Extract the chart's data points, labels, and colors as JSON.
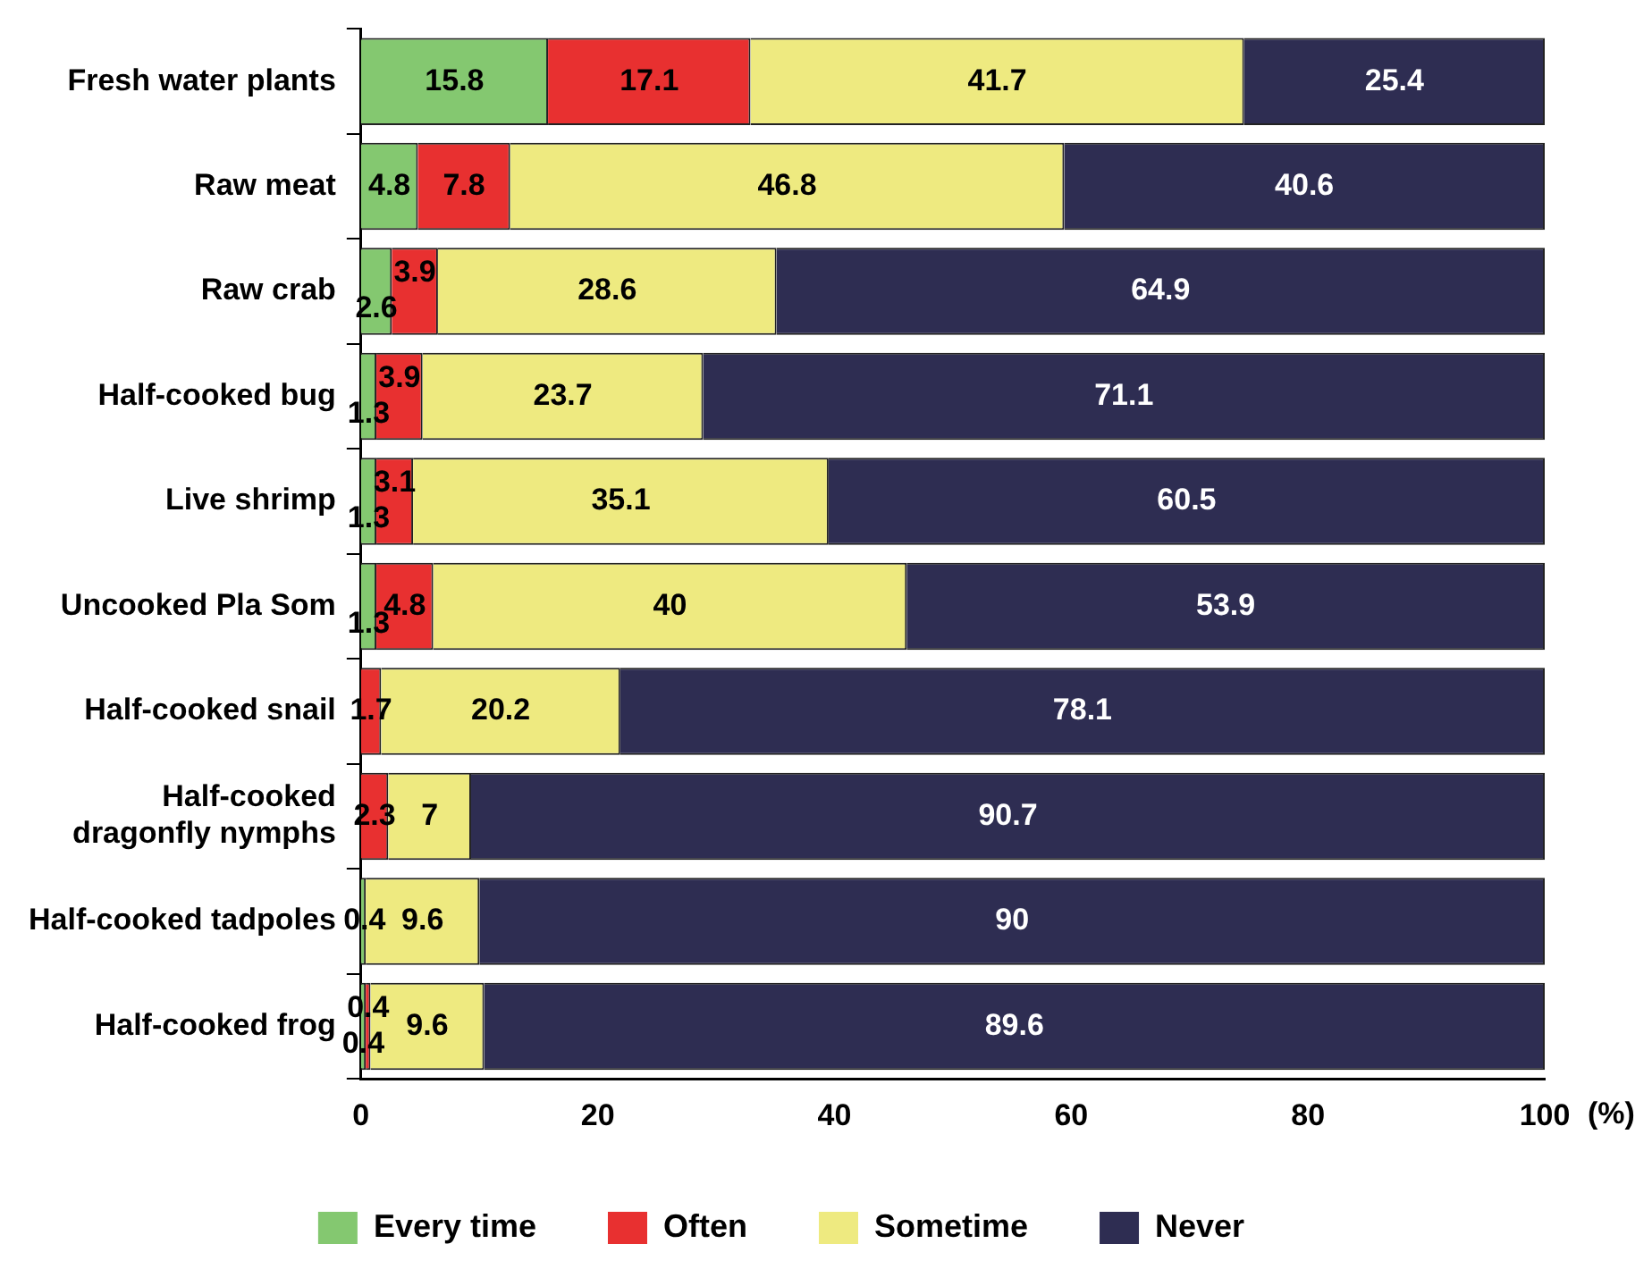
{
  "chart_data": {
    "type": "bar",
    "orientation": "horizontal",
    "stacked": true,
    "xlabel": "(%)",
    "categories": [
      "Fresh water plants",
      "Raw meat",
      "Raw crab",
      "Half-cooked bug",
      "Live shrimp",
      "Uncooked Pla Som",
      "Half-cooked snail",
      "Half-cooked dragonfly nymphs",
      "Half-cooked tadpoles",
      "Half-cooked frog"
    ],
    "series": [
      {
        "name": "Every time",
        "color": "#84c870",
        "values": [
          15.8,
          4.8,
          2.6,
          1.3,
          1.3,
          1.3,
          0,
          0,
          0.4,
          0.4
        ],
        "value_labels": [
          "15.8",
          "4.8",
          "2.6",
          "1.3",
          "1.3",
          "1.3",
          null,
          null,
          "0.4",
          "0.4"
        ]
      },
      {
        "name": "Often",
        "color": "#e83030",
        "values": [
          17.1,
          7.8,
          3.9,
          3.9,
          3.1,
          4.8,
          1.7,
          2.3,
          0,
          0.4
        ],
        "value_labels": [
          "17.1",
          "7.8",
          "3.9",
          "3.9",
          "3.1",
          "4.8",
          "1.7",
          "2.3",
          null,
          "0.4"
        ]
      },
      {
        "name": "Sometime",
        "color": "#eeea80",
        "values": [
          41.7,
          46.8,
          28.6,
          23.7,
          35.1,
          40,
          20.2,
          7,
          9.6,
          9.6
        ],
        "value_labels": [
          "41.7",
          "46.8",
          "28.6",
          "23.7",
          "35.1",
          "40",
          "20.2",
          "7",
          "9.6",
          "9.6"
        ]
      },
      {
        "name": "Never",
        "color": "#2e2d52",
        "values": [
          25.4,
          40.6,
          64.9,
          71.1,
          60.5,
          53.9,
          78.1,
          90.7,
          90,
          89.6
        ],
        "value_labels": [
          "25.4",
          "40.6",
          "64.9",
          "71.1",
          "60.5",
          "53.9",
          "78.1",
          "90.7",
          "90",
          "89.6"
        ]
      }
    ],
    "xlim": [
      0,
      100
    ],
    "xticks": [
      0,
      20,
      40,
      60,
      80,
      100
    ],
    "grid": false,
    "legend": "bottom"
  }
}
